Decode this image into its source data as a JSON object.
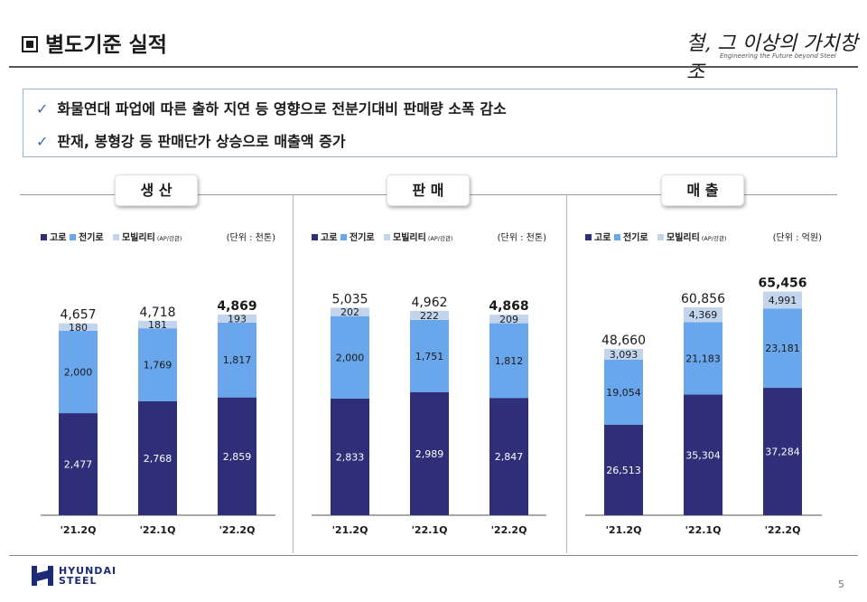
{
  "title": "별도기준 실적",
  "brand": {
    "slogan": "철, 그 이상의 가치창조",
    "tagline": "Engineering the Future beyond Steel",
    "footer_logo_line1": "HYUNDAI",
    "footer_logo_line2": "STEEL"
  },
  "summary": [
    "화물연대 파업에 따른 출하 지연 등 영향으로 전분기대비 판매량 소폭 감소",
    "판재, 봉형강 등 판매단가 상승으로 매출액 증가"
  ],
  "page_number": "5",
  "colors": {
    "blast_furnace": "#2e2f78",
    "electric_furnace": "#6aa6ec",
    "mobility": "#c3d5ec"
  },
  "chart_data": [
    {
      "type": "bar",
      "stacked": true,
      "title": "생 산",
      "unit": "(단위 : 천톤)",
      "categories": [
        "'21.2Q",
        "'22.1Q",
        "'22.2Q"
      ],
      "series": [
        {
          "name": "고로",
          "values": [
            2477,
            2768,
            2859
          ],
          "labels": [
            "2,477",
            "2,768",
            "2,859"
          ]
        },
        {
          "name": "전기로",
          "values": [
            2000,
            1769,
            1817
          ],
          "labels": [
            "2,000",
            "1,769",
            "1,817"
          ]
        },
        {
          "name": "모빌리티",
          "legend_note": "(AP/강관)",
          "values": [
            180,
            181,
            193
          ],
          "labels": [
            "180",
            "181",
            "193"
          ]
        }
      ],
      "totals": [
        4657,
        4718,
        4869
      ],
      "total_labels": [
        "4,657",
        "4,718",
        "4,869"
      ],
      "ylim": [
        0,
        6800
      ]
    },
    {
      "type": "bar",
      "stacked": true,
      "title": "판 매",
      "unit": "(단위 : 천톤)",
      "categories": [
        "'21.2Q",
        "'22.1Q",
        "'22.2Q"
      ],
      "series": [
        {
          "name": "고로",
          "values": [
            2833,
            2989,
            2847
          ],
          "labels": [
            "2,833",
            "2,989",
            "2,847"
          ]
        },
        {
          "name": "전기로",
          "values": [
            2000,
            1751,
            1812
          ],
          "labels": [
            "2,000",
            "1,751",
            "1,812"
          ]
        },
        {
          "name": "모빌리티",
          "legend_note": "(AP/강관)",
          "values": [
            202,
            222,
            209
          ],
          "labels": [
            "202",
            "222",
            "209"
          ]
        }
      ],
      "totals": [
        5035,
        4962,
        4868
      ],
      "total_labels": [
        "5,035",
        "4,962",
        "4,868"
      ],
      "ylim": [
        0,
        6800
      ]
    },
    {
      "type": "bar",
      "stacked": true,
      "title": "매 출",
      "unit": "(단위 : 억원)",
      "categories": [
        "'21.2Q",
        "'22.1Q",
        "'22.2Q"
      ],
      "series": [
        {
          "name": "고로",
          "values": [
            26513,
            35304,
            37284
          ],
          "labels": [
            "26,513",
            "35,304",
            "37,284"
          ]
        },
        {
          "name": "전기로",
          "values": [
            19054,
            21183,
            23181
          ],
          "labels": [
            "19,054",
            "21,183",
            "23,181"
          ]
        },
        {
          "name": "모빌리티",
          "legend_note": "(AP/강관)",
          "values": [
            3093,
            4369,
            4991
          ],
          "labels": [
            "3,093",
            "4,369",
            "4,991"
          ]
        }
      ],
      "totals": [
        48660,
        60856,
        65456
      ],
      "total_labels": [
        "48,660",
        "60,856",
        "65,456"
      ],
      "ylim": [
        0,
        82000
      ]
    }
  ]
}
